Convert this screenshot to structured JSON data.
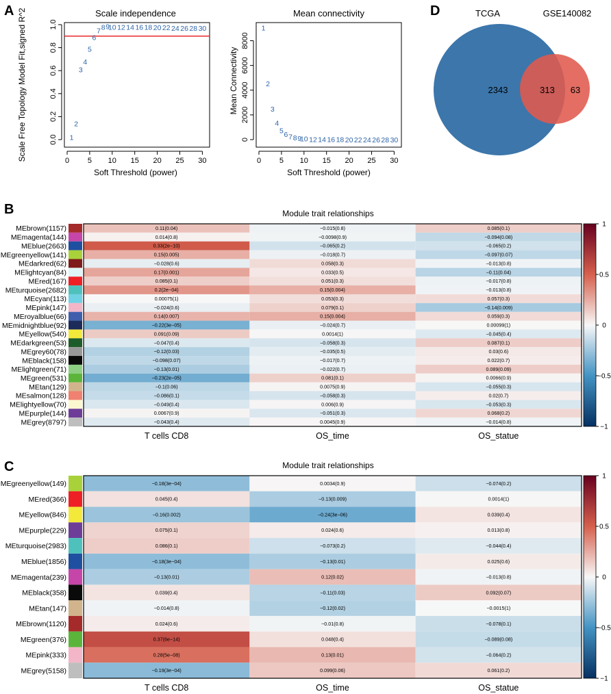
{
  "panels": {
    "A": {
      "label": "A",
      "scale_independence": {
        "title": "Scale independence",
        "xlabel": "Soft Threshold (power)",
        "ylabel": "Scale Free Topology Model Fit,signed R^2",
        "xticks": [
          "0",
          "5",
          "10",
          "15",
          "20",
          "25",
          "30"
        ],
        "yticks": [
          "0.0",
          "0.2",
          "0.4",
          "0.6",
          "0.8",
          "1.0"
        ],
        "xlim": [
          0,
          31
        ],
        "ylim": [
          0,
          1.0
        ],
        "cutoff": 0.9,
        "cutoff_color": "#e8272b",
        "point_color": "#2d64a8",
        "points": [
          {
            "x": 1,
            "y": 0.02,
            "label": "1"
          },
          {
            "x": 2,
            "y": 0.14,
            "label": "2"
          },
          {
            "x": 3,
            "y": 0.61,
            "label": "3"
          },
          {
            "x": 4,
            "y": 0.68,
            "label": "4"
          },
          {
            "x": 5,
            "y": 0.79,
            "label": "5"
          },
          {
            "x": 6,
            "y": 0.89,
            "label": "6"
          },
          {
            "x": 7,
            "y": 0.95,
            "label": "7"
          },
          {
            "x": 8,
            "y": 0.98,
            "label": "8"
          },
          {
            "x": 9,
            "y": 0.985,
            "label": "9"
          },
          {
            "x": 10,
            "y": 0.98,
            "label": "10"
          },
          {
            "x": 12,
            "y": 0.98,
            "label": "12"
          },
          {
            "x": 14,
            "y": 0.98,
            "label": "14"
          },
          {
            "x": 16,
            "y": 0.98,
            "label": "16"
          },
          {
            "x": 18,
            "y": 0.98,
            "label": "18"
          },
          {
            "x": 20,
            "y": 0.975,
            "label": "20"
          },
          {
            "x": 22,
            "y": 0.975,
            "label": "22"
          },
          {
            "x": 24,
            "y": 0.97,
            "label": "24"
          },
          {
            "x": 26,
            "y": 0.97,
            "label": "26"
          },
          {
            "x": 28,
            "y": 0.97,
            "label": "28"
          },
          {
            "x": 30,
            "y": 0.97,
            "label": "30"
          }
        ]
      },
      "mean_connectivity": {
        "title": "Mean connectivity",
        "xlabel": "Soft Threshold (power)",
        "ylabel": "Mean Connectivity",
        "xticks": [
          "0",
          "5",
          "10",
          "15",
          "20",
          "25",
          "30"
        ],
        "yticks": [
          "0",
          "2000",
          "4000",
          "6000",
          "8000"
        ],
        "xlim": [
          0,
          31
        ],
        "ylim": [
          0,
          9300
        ],
        "point_color": "#2d64a8",
        "points": [
          {
            "x": 1,
            "y": 9050,
            "label": "1"
          },
          {
            "x": 2,
            "y": 4550,
            "label": "2"
          },
          {
            "x": 3,
            "y": 2500,
            "label": "3"
          },
          {
            "x": 4,
            "y": 1350,
            "label": "4"
          },
          {
            "x": 5,
            "y": 750,
            "label": "5"
          },
          {
            "x": 6,
            "y": 430,
            "label": "6"
          },
          {
            "x": 7,
            "y": 260,
            "label": "7"
          },
          {
            "x": 8,
            "y": 160,
            "label": "8"
          },
          {
            "x": 9,
            "y": 100,
            "label": "9"
          },
          {
            "x": 10,
            "y": 70,
            "label": "10"
          },
          {
            "x": 12,
            "y": 40,
            "label": "12"
          },
          {
            "x": 14,
            "y": 30,
            "label": "14"
          },
          {
            "x": 16,
            "y": 20,
            "label": "16"
          },
          {
            "x": 18,
            "y": 15,
            "label": "18"
          },
          {
            "x": 20,
            "y": 10,
            "label": "20"
          },
          {
            "x": 22,
            "y": 10,
            "label": "22"
          },
          {
            "x": 24,
            "y": 8,
            "label": "24"
          },
          {
            "x": 26,
            "y": 6,
            "label": "26"
          },
          {
            "x": 28,
            "y": 5,
            "label": "28"
          },
          {
            "x": 30,
            "y": 5,
            "label": "30"
          }
        ]
      }
    },
    "D": {
      "label": "D",
      "venn": {
        "set_a": {
          "name": "TCGA",
          "color": "#3c76ab"
        },
        "set_b": {
          "name": "GSE140082",
          "color": "#e05a4d"
        },
        "only_a": "2343",
        "overlap": "313",
        "only_b": "63"
      }
    },
    "B": {
      "label": "B",
      "title": "Module trait relationships",
      "columns": [
        "T cells CD8",
        "OS_time",
        "OS_statue"
      ],
      "legend_ticks": [
        "1",
        "0.5",
        "0",
        "-0.5",
        "-1"
      ],
      "rows": [
        {
          "name": "MEbrown(1157)",
          "color": "#a52a2a",
          "r": [
            0.11,
            -0.015,
            0.085
          ],
          "text": [
            "0.11(0.04)",
            "−0.015(0.8)",
            "0.085(0.1)"
          ]
        },
        {
          "name": "MEmagenta(144)",
          "color": "#c546a8",
          "r": [
            0.014,
            -0.0098,
            -0.094
          ],
          "text": [
            "0.014(0.8)",
            "−0.0098(0.9)",
            "−0.094(0.08)"
          ]
        },
        {
          "name": "MEblue(2663)",
          "color": "#1e4fa0",
          "r": [
            0.33,
            -0.065,
            -0.065
          ],
          "text": [
            "0.33(2e−10)",
            "−0.065(0.2)",
            "−0.065(0.2)"
          ]
        },
        {
          "name": "MEgreenyellow(141)",
          "color": "#a9d13a",
          "r": [
            0.15,
            -0.018,
            -0.097
          ],
          "text": [
            "0.15(0.005)",
            "−0.018(0.7)",
            "−0.097(0.07)"
          ]
        },
        {
          "name": "MEdarkred(62)",
          "color": "#7f1a1a",
          "r": [
            -0.028,
            0.058,
            -0.013
          ],
          "text": [
            "−0.028(0.6)",
            "0.058(0.3)",
            "−0.013(0.8)"
          ]
        },
        {
          "name": "MElightcyan(84)",
          "color": "#dff4f5",
          "r": [
            0.17,
            0.033,
            -0.11
          ],
          "text": [
            "0.17(0.001)",
            "0.033(0.5)",
            "−0.11(0.04)"
          ]
        },
        {
          "name": "MEred(167)",
          "color": "#ee2025",
          "r": [
            0.085,
            0.051,
            -0.017
          ],
          "text": [
            "0.085(0.1)",
            "0.051(0.3)",
            "−0.017(0.8)"
          ]
        },
        {
          "name": "MEturquoise(2682)",
          "color": "#4fc1bc",
          "r": [
            0.2,
            0.15,
            -0.013
          ],
          "text": [
            "0.2(2e−04)",
            "0.15(0.004)",
            "−0.013(0.8)"
          ]
        },
        {
          "name": "MEcyan(113)",
          "color": "#6fd1e3",
          "r": [
            0.00075,
            0.053,
            0.057
          ],
          "text": [
            "0.00075(1)",
            "0.053(0.3)",
            "0.057(0.3)"
          ]
        },
        {
          "name": "MEpink(147)",
          "color": "#f3b6c8",
          "r": [
            -0.024,
            0.079,
            -0.14
          ],
          "text": [
            "−0.024(0.6)",
            "0.079(0.1)",
            "−0.14(0.009)"
          ]
        },
        {
          "name": "MEroyalblue(66)",
          "color": "#3f5fad",
          "r": [
            0.14,
            0.15,
            0.059
          ],
          "text": [
            "0.14(0.007)",
            "0.15(0.004)",
            "0.059(0.3)"
          ]
        },
        {
          "name": "MEmidnightblue(92)",
          "color": "#1c2b5a",
          "r": [
            -0.22,
            -0.024,
            0.00099
          ],
          "text": [
            "−0.22(3e−05)",
            "−0.024(0.7)",
            "0.00099(1)"
          ]
        },
        {
          "name": "MEyellow(540)",
          "color": "#f3e93a",
          "r": [
            0.091,
            0.0014,
            -0.045
          ],
          "text": [
            "0.091(0.09)",
            "0.0014(1)",
            "−0.045(0.4)"
          ]
        },
        {
          "name": "MEdarkgreen(53)",
          "color": "#1e5b2a",
          "r": [
            -0.047,
            -0.058,
            0.087
          ],
          "text": [
            "−0.047(0.4)",
            "−0.058(0.3)",
            "0.087(0.1)"
          ]
        },
        {
          "name": "MEgrey60(78)",
          "color": "#999999",
          "r": [
            -0.12,
            -0.035,
            0.03
          ],
          "text": [
            "−0.12(0.03)",
            "−0.035(0.5)",
            "0.03(0.6)"
          ]
        },
        {
          "name": "MEblack(158)",
          "color": "#0a0a0a",
          "r": [
            -0.098,
            -0.017,
            0.022
          ],
          "text": [
            "−0.098(0.07)",
            "−0.017(0.7)",
            "0.022(0.7)"
          ]
        },
        {
          "name": "MElightgreen(71)",
          "color": "#8fcf84",
          "r": [
            -0.13,
            -0.022,
            0.089
          ],
          "text": [
            "−0.13(0.01)",
            "−0.022(0.7)",
            "0.089(0.09)"
          ]
        },
        {
          "name": "MEgreen(531)",
          "color": "#5ab53a",
          "r": [
            -0.23,
            0.081,
            0.0066
          ],
          "text": [
            "−0.23(2e−05)",
            "0.081(0.1)",
            "0.0066(0.9)"
          ]
        },
        {
          "name": "MEtan(129)",
          "color": "#d2b48c",
          "r": [
            -0.1,
            0.0075,
            -0.055
          ],
          "text": [
            "−0.1(0.06)",
            "0.0075(0.9)",
            "−0.055(0.3)"
          ]
        },
        {
          "name": "MEsalmon(128)",
          "color": "#f08070",
          "r": [
            -0.086,
            -0.058,
            0.02
          ],
          "text": [
            "−0.086(0.1)",
            "−0.058(0.3)",
            "0.02(0.7)"
          ]
        },
        {
          "name": "MElightyellow(70)",
          "color": "#fbf8d0",
          "r": [
            -0.049,
            0.006,
            -0.053
          ],
          "text": [
            "−0.049(0.4)",
            "0.006(0.9)",
            "−0.053(0.3)"
          ]
        },
        {
          "name": "MEpurple(144)",
          "color": "#6e3d98",
          "r": [
            0.0067,
            -0.051,
            0.068
          ],
          "text": [
            "0.0067(0.9)",
            "−0.051(0.3)",
            "0.068(0.2)"
          ]
        },
        {
          "name": "MEgrey(8797)",
          "color": "#bebebe",
          "r": [
            -0.043,
            0.0045,
            -0.014
          ],
          "text": [
            "−0.043(0.4)",
            "0.0045(0.9)",
            "−0.014(0.8)"
          ]
        }
      ]
    },
    "C": {
      "label": "C",
      "title": "Module trait relationships",
      "columns": [
        "T cells CD8",
        "OS_time",
        "OS_statue"
      ],
      "legend_ticks": [
        "1",
        "0.5",
        "0",
        "-0.5",
        "-1"
      ],
      "rows": [
        {
          "name": "MEgreenyellow(149)",
          "color": "#a9d13a",
          "r": [
            -0.18,
            0.0034,
            -0.074
          ],
          "text": [
            "−0.18(3e−04)",
            "0.0034(0.9)",
            "−0.074(0.2)"
          ]
        },
        {
          "name": "MEred(366)",
          "color": "#ee2025",
          "r": [
            0.045,
            -0.13,
            0.0014
          ],
          "text": [
            "0.045(0.4)",
            "−0.13(0.009)",
            "0.0014(1)"
          ]
        },
        {
          "name": "MEyellow(846)",
          "color": "#f3e93a",
          "r": [
            -0.16,
            -0.24,
            0.039
          ],
          "text": [
            "−0.16(0.002)",
            "−0.24(3e−06)",
            "0.039(0.4)"
          ]
        },
        {
          "name": "MEpurple(229)",
          "color": "#6e3d98",
          "r": [
            0.075,
            0.024,
            0.013
          ],
          "text": [
            "0.075(0.1)",
            "0.024(0.6)",
            "0.013(0.8)"
          ]
        },
        {
          "name": "MEturquoise(2983)",
          "color": "#4fc1bc",
          "r": [
            0.086,
            -0.073,
            -0.044
          ],
          "text": [
            "0.086(0.1)",
            "−0.073(0.2)",
            "−0.044(0.4)"
          ]
        },
        {
          "name": "MEblue(1856)",
          "color": "#1e4fa0",
          "r": [
            -0.18,
            -0.13,
            0.025
          ],
          "text": [
            "−0.18(3e−04)",
            "−0.13(0.01)",
            "0.025(0.6)"
          ]
        },
        {
          "name": "MEmagenta(239)",
          "color": "#c546a8",
          "r": [
            -0.13,
            0.12,
            -0.013
          ],
          "text": [
            "−0.13(0.01)",
            "0.12(0.02)",
            "−0.013(0.8)"
          ]
        },
        {
          "name": "MEblack(358)",
          "color": "#0a0a0a",
          "r": [
            0.039,
            -0.11,
            0.092
          ],
          "text": [
            "0.039(0.4)",
            "−0.11(0.03)",
            "0.092(0.07)"
          ]
        },
        {
          "name": "MEtan(147)",
          "color": "#d2b48c",
          "r": [
            -0.014,
            -0.12,
            -0.0015
          ],
          "text": [
            "−0.014(0.8)",
            "−0.12(0.02)",
            "−0.0015(1)"
          ]
        },
        {
          "name": "MEbrown(1120)",
          "color": "#a52a2a",
          "r": [
            0.024,
            -0.01,
            -0.078
          ],
          "text": [
            "0.024(0.6)",
            "−0.01(0.8)",
            "−0.078(0.1)"
          ]
        },
        {
          "name": "MEgreen(376)",
          "color": "#5ab53a",
          "r": [
            0.37,
            0.048,
            -0.089
          ],
          "text": [
            "0.37(6e−14)",
            "0.048(0.4)",
            "−0.089(0.08)"
          ]
        },
        {
          "name": "MEpink(333)",
          "color": "#f3b6c8",
          "r": [
            0.28,
            0.13,
            -0.064
          ],
          "text": [
            "0.28(5e−08)",
            "0.13(0.01)",
            "−0.064(0.2)"
          ]
        },
        {
          "name": "MEgrey(5158)",
          "color": "#bebebe",
          "r": [
            -0.19,
            0.099,
            0.061
          ],
          "text": [
            "−0.19(3e−04)",
            "0.099(0.06)",
            "0.061(0.2)"
          ]
        }
      ]
    }
  },
  "chart_data": [
    {
      "type": "scatter",
      "title": "Scale independence",
      "xlabel": "Soft Threshold (power)",
      "ylabel": "Scale Free Topology Model Fit,signed R^2",
      "x": [
        1,
        2,
        3,
        4,
        5,
        6,
        7,
        8,
        9,
        10,
        12,
        14,
        16,
        18,
        20,
        22,
        24,
        26,
        28,
        30
      ],
      "y": [
        0.02,
        0.14,
        0.61,
        0.68,
        0.79,
        0.89,
        0.95,
        0.98,
        0.985,
        0.98,
        0.98,
        0.98,
        0.98,
        0.98,
        0.975,
        0.975,
        0.97,
        0.97,
        0.97,
        0.97
      ],
      "xlim": [
        0,
        31
      ],
      "ylim": [
        0,
        1.0
      ],
      "hline": 0.9
    },
    {
      "type": "scatter",
      "title": "Mean connectivity",
      "xlabel": "Soft Threshold (power)",
      "ylabel": "Mean Connectivity",
      "x": [
        1,
        2,
        3,
        4,
        5,
        6,
        7,
        8,
        9,
        10,
        12,
        14,
        16,
        18,
        20,
        22,
        24,
        26,
        28,
        30
      ],
      "y": [
        9050,
        4550,
        2500,
        1350,
        750,
        430,
        260,
        160,
        100,
        70,
        40,
        30,
        20,
        15,
        10,
        10,
        8,
        6,
        5,
        5
      ],
      "xlim": [
        0,
        31
      ],
      "ylim": [
        0,
        9300
      ]
    },
    {
      "type": "venn",
      "sets": [
        "TCGA",
        "GSE140082"
      ],
      "values": {
        "TCGA_only": 2343,
        "intersection": 313,
        "GSE140082_only": 63
      }
    },
    {
      "type": "heatmap",
      "title": "Module trait relationships",
      "note": "panel B, 23 modules x 3 traits; values in panels.B.rows",
      "xlabel": "",
      "ylabel": ""
    },
    {
      "type": "heatmap",
      "title": "Module trait relationships",
      "note": "panel C, 13 modules x 3 traits; values in panels.C.rows",
      "xlabel": "",
      "ylabel": ""
    }
  ]
}
